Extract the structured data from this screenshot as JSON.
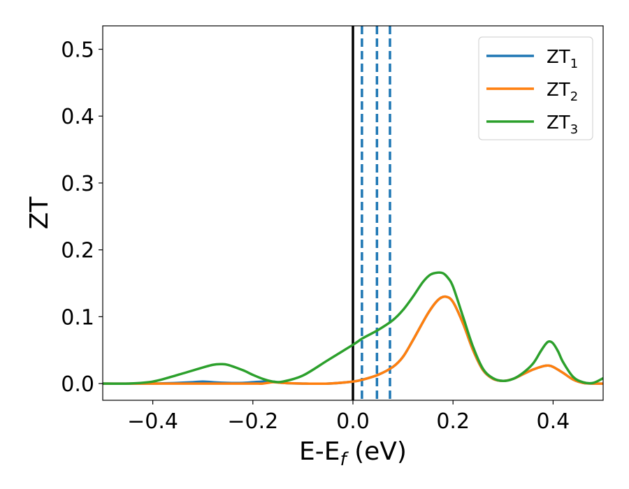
{
  "chart_data": {
    "type": "line",
    "title": "",
    "xlabel": "E-E",
    "xlabel_sub": "f",
    "xlabel_unit": " (eV)",
    "ylabel": "ZT",
    "xlim": [
      -0.5,
      0.5
    ],
    "ylim": [
      -0.025,
      0.535
    ],
    "x_ticks": [
      -0.4,
      -0.2,
      0.0,
      0.2,
      0.4
    ],
    "x_tick_labels": [
      "−0.4",
      "−0.2",
      "0.0",
      "0.2",
      "0.4"
    ],
    "y_ticks": [
      0.0,
      0.1,
      0.2,
      0.3,
      0.4,
      0.5
    ],
    "y_tick_labels": [
      "0.0",
      "0.1",
      "0.2",
      "0.3",
      "0.4",
      "0.5"
    ],
    "grid": false,
    "legend_position": "top-right",
    "vertical_lines": [
      {
        "x": 0.0,
        "color": "#000000",
        "style": "solid"
      },
      {
        "x": 0.018,
        "color": "#1f77b4",
        "style": "dashed"
      },
      {
        "x": 0.048,
        "color": "#1f77b4",
        "style": "dashed"
      },
      {
        "x": 0.074,
        "color": "#1f77b4",
        "style": "dashed"
      }
    ],
    "series": [
      {
        "name": "ZT",
        "name_sub": "1",
        "color": "#1f77b4",
        "x": [
          -0.5,
          -0.45,
          -0.4,
          -0.35,
          -0.32,
          -0.3,
          -0.28,
          -0.25,
          -0.22,
          -0.2,
          -0.18,
          -0.16,
          -0.14,
          -0.1,
          -0.05,
          0.0,
          0.02,
          0.05,
          0.08,
          0.1,
          0.12,
          0.15,
          0.17,
          0.185,
          0.2,
          0.22,
          0.24,
          0.26,
          0.28,
          0.3,
          0.32,
          0.34,
          0.36,
          0.38,
          0.39,
          0.4,
          0.42,
          0.44,
          0.46,
          0.48,
          0.5
        ],
        "y": [
          0.0,
          0.0,
          0.0,
          0.001,
          0.002,
          0.003,
          0.002,
          0.001,
          0.001,
          0.002,
          0.003,
          0.003,
          0.001,
          0.0,
          0.0,
          0.003,
          0.006,
          0.013,
          0.025,
          0.04,
          0.065,
          0.105,
          0.125,
          0.13,
          0.122,
          0.09,
          0.05,
          0.02,
          0.007,
          0.004,
          0.007,
          0.014,
          0.021,
          0.026,
          0.027,
          0.025,
          0.016,
          0.006,
          0.001,
          0.0,
          0.0
        ]
      },
      {
        "name": "ZT",
        "name_sub": "2",
        "color": "#ff7f0e",
        "x": [
          -0.5,
          -0.45,
          -0.4,
          -0.35,
          -0.3,
          -0.25,
          -0.2,
          -0.18,
          -0.16,
          -0.14,
          -0.1,
          -0.05,
          0.0,
          0.02,
          0.05,
          0.08,
          0.1,
          0.12,
          0.15,
          0.17,
          0.185,
          0.2,
          0.22,
          0.24,
          0.26,
          0.28,
          0.3,
          0.32,
          0.34,
          0.36,
          0.38,
          0.39,
          0.4,
          0.42,
          0.44,
          0.46,
          0.48,
          0.5
        ],
        "y": [
          0.0,
          0.0,
          0.0,
          0.0,
          0.0,
          0.0,
          0.0,
          0.0,
          0.002,
          0.001,
          0.0,
          0.0,
          0.003,
          0.006,
          0.013,
          0.025,
          0.04,
          0.065,
          0.105,
          0.125,
          0.13,
          0.122,
          0.09,
          0.05,
          0.02,
          0.007,
          0.004,
          0.007,
          0.014,
          0.021,
          0.026,
          0.027,
          0.025,
          0.016,
          0.006,
          0.001,
          0.0,
          0.0
        ]
      },
      {
        "name": "ZT",
        "name_sub": "3",
        "color": "#2ca02c",
        "x": [
          -0.5,
          -0.45,
          -0.4,
          -0.35,
          -0.3,
          -0.28,
          -0.265,
          -0.25,
          -0.22,
          -0.2,
          -0.18,
          -0.16,
          -0.14,
          -0.1,
          -0.05,
          0.0,
          0.02,
          0.05,
          0.08,
          0.1,
          0.12,
          0.14,
          0.155,
          0.17,
          0.18,
          0.19,
          0.2,
          0.22,
          0.24,
          0.26,
          0.28,
          0.3,
          0.32,
          0.34,
          0.36,
          0.375,
          0.385,
          0.392,
          0.4,
          0.41,
          0.42,
          0.44,
          0.46,
          0.48,
          0.5
        ],
        "y": [
          0.0,
          0.0,
          0.003,
          0.013,
          0.024,
          0.028,
          0.029,
          0.028,
          0.02,
          0.013,
          0.007,
          0.003,
          0.003,
          0.012,
          0.035,
          0.058,
          0.068,
          0.08,
          0.095,
          0.11,
          0.13,
          0.152,
          0.163,
          0.166,
          0.165,
          0.158,
          0.145,
          0.1,
          0.055,
          0.022,
          0.008,
          0.004,
          0.007,
          0.016,
          0.03,
          0.048,
          0.059,
          0.063,
          0.06,
          0.048,
          0.032,
          0.01,
          0.002,
          0.001,
          0.008
        ]
      }
    ]
  }
}
